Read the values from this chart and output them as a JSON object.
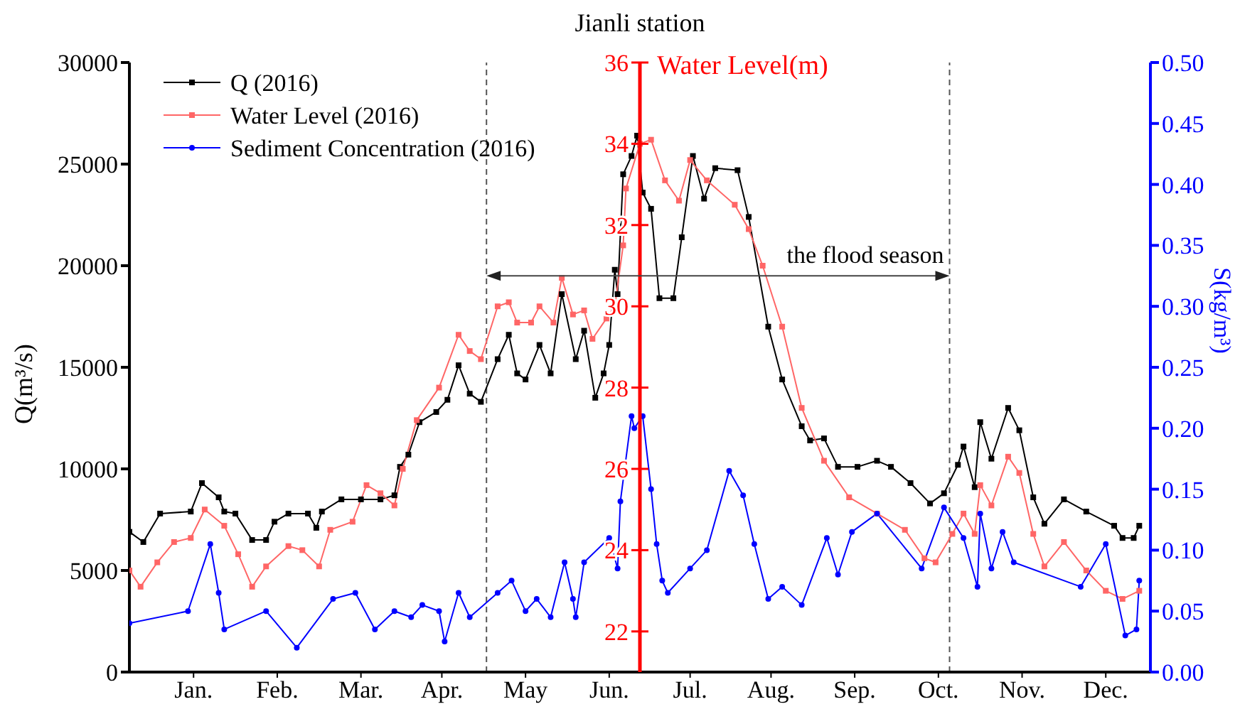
{
  "chart_data": {
    "type": "line",
    "title": "Jianli station",
    "ylabel": "Q(m³/s)",
    "y2label": "Water Level(m)",
    "y3label": "S(kg/m³)",
    "annotations": [
      "the flood season"
    ],
    "xlim": [
      "2016-01-01",
      "2017-01-01"
    ],
    "xticks": [
      {
        "value": "2016-01-24",
        "label": "Jan."
      },
      {
        "value": "2016-02-23",
        "label": "Feb."
      },
      {
        "value": "2016-03-24",
        "label": "Mar."
      },
      {
        "value": "2016-04-22",
        "label": "Apr."
      },
      {
        "value": "2016-05-22",
        "label": "May"
      },
      {
        "value": "2016-06-21",
        "label": "Jun."
      },
      {
        "value": "2016-07-20",
        "label": "Jul."
      },
      {
        "value": "2016-08-18",
        "label": "Aug."
      },
      {
        "value": "2016-09-17",
        "label": "Sep."
      },
      {
        "value": "2016-10-17",
        "label": "Oct."
      },
      {
        "value": "2016-11-16",
        "label": "Nov."
      },
      {
        "value": "2016-12-16",
        "label": "Dec."
      }
    ],
    "ylim": [
      0,
      30000
    ],
    "yticks": [
      0,
      5000,
      10000,
      15000,
      20000,
      25000,
      30000
    ],
    "y2lim": [
      21,
      36
    ],
    "y2ticks": [
      22,
      24,
      26,
      28,
      30,
      32,
      34,
      36
    ],
    "y3lim": [
      0,
      0.5
    ],
    "y3ticks": [
      {
        "value": 0,
        "label": "0.00"
      },
      {
        "value": 0.05,
        "label": "0.05"
      },
      {
        "value": 0.1,
        "label": "0.10"
      },
      {
        "value": 0.15,
        "label": "0.15"
      },
      {
        "value": 0.2,
        "label": "0.20"
      },
      {
        "value": 0.25,
        "label": "0.25"
      },
      {
        "value": 0.3,
        "label": "0.30"
      },
      {
        "value": 0.35,
        "label": "0.35"
      },
      {
        "value": 0.4,
        "label": "0.40"
      },
      {
        "value": 0.45,
        "label": "0.45"
      },
      {
        "value": 0.5,
        "label": "0.50"
      }
    ],
    "legend": "top left",
    "ref_lines": [
      {
        "axis": "x",
        "value": "2016-05-08",
        "color": "#555555",
        "line_style": "dashed"
      },
      {
        "axis": "x",
        "value": "2016-10-21",
        "color": "#555555",
        "line_style": "dashed"
      }
    ],
    "series": [
      {
        "name": "Q (2016)",
        "color": "#000000",
        "marker": "square",
        "x": [
          "2016-01-01",
          "2016-01-06",
          "2016-01-12",
          "2016-01-23",
          "2016-01-27",
          "2016-02-02",
          "2016-02-04",
          "2016-02-08",
          "2016-02-14",
          "2016-02-19",
          "2016-02-22",
          "2016-02-27",
          "2016-03-05",
          "2016-03-08",
          "2016-03-10",
          "2016-03-17",
          "2016-03-24",
          "2016-03-31",
          "2016-04-05",
          "2016-04-07",
          "2016-04-10",
          "2016-04-14",
          "2016-04-20",
          "2016-04-24",
          "2016-04-28",
          "2016-05-02",
          "2016-05-06",
          "2016-05-12",
          "2016-05-16",
          "2016-05-19",
          "2016-05-22",
          "2016-05-27",
          "2016-05-31",
          "2016-06-04",
          "2016-06-09",
          "2016-06-12",
          "2016-06-16",
          "2016-06-19",
          "2016-06-21",
          "2016-06-23",
          "2016-06-24",
          "2016-06-26",
          "2016-06-29",
          "2016-07-01",
          "2016-07-03",
          "2016-07-06",
          "2016-07-09",
          "2016-07-14",
          "2016-07-17",
          "2016-07-21",
          "2016-07-25",
          "2016-07-29",
          "2016-08-06",
          "2016-08-10",
          "2016-08-17",
          "2016-08-22",
          "2016-08-29",
          "2016-09-01",
          "2016-09-06",
          "2016-09-11",
          "2016-09-18",
          "2016-09-25",
          "2016-09-30",
          "2016-10-07",
          "2016-10-14",
          "2016-10-19",
          "2016-10-24",
          "2016-10-26",
          "2016-10-30",
          "2016-11-01",
          "2016-11-05",
          "2016-11-11",
          "2016-11-15",
          "2016-11-20",
          "2016-11-24",
          "2016-12-01",
          "2016-12-09",
          "2016-12-19",
          "2016-12-22",
          "2016-12-26",
          "2016-12-28"
        ],
        "values": [
          6900,
          6400,
          7800,
          7900,
          9300,
          8600,
          7900,
          7800,
          6500,
          6500,
          7400,
          7800,
          7800,
          7100,
          7900,
          8500,
          8500,
          8500,
          8700,
          10100,
          10700,
          12300,
          12800,
          13400,
          15100,
          13700,
          13300,
          15400,
          16600,
          14700,
          14400,
          16100,
          14700,
          18600,
          15400,
          16800,
          13500,
          14700,
          16100,
          19800,
          18600,
          24500,
          25400,
          26400,
          23600,
          22800,
          18400,
          18400,
          21400,
          25400,
          23300,
          24800,
          24700,
          22400,
          17000,
          14400,
          12100,
          11400,
          11500,
          10100,
          10100,
          10400,
          10100,
          9300,
          8300,
          8800,
          10200,
          11100,
          9100,
          12300,
          10500,
          13000,
          11900,
          8600,
          7300,
          8500,
          7900,
          7200,
          6600,
          6600,
          7200
        ]
      },
      {
        "name": "Water Level (2016)",
        "color": "#ff6666",
        "marker": "square",
        "axis": "y2",
        "x": [
          "2016-01-01",
          "2016-01-05",
          "2016-01-11",
          "2016-01-17",
          "2016-01-23",
          "2016-01-28",
          "2016-02-04",
          "2016-02-09",
          "2016-02-14",
          "2016-02-19",
          "2016-02-27",
          "2016-03-03",
          "2016-03-09",
          "2016-03-13",
          "2016-03-21",
          "2016-03-26",
          "2016-03-31",
          "2016-04-05",
          "2016-04-08",
          "2016-04-13",
          "2016-04-21",
          "2016-04-28",
          "2016-05-02",
          "2016-05-06",
          "2016-05-12",
          "2016-05-16",
          "2016-05-19",
          "2016-05-24",
          "2016-05-27",
          "2016-06-01",
          "2016-06-04",
          "2016-06-08",
          "2016-06-12",
          "2016-06-15",
          "2016-06-20",
          "2016-06-23",
          "2016-06-26",
          "2016-06-27",
          "2016-07-02",
          "2016-07-06",
          "2016-07-11",
          "2016-07-16",
          "2016-07-20",
          "2016-07-26",
          "2016-08-05",
          "2016-08-10",
          "2016-08-15",
          "2016-08-22",
          "2016-08-29",
          "2016-09-06",
          "2016-09-15",
          "2016-09-25",
          "2016-10-05",
          "2016-10-12",
          "2016-10-16",
          "2016-10-22",
          "2016-10-26",
          "2016-10-30",
          "2016-11-01",
          "2016-11-05",
          "2016-11-11",
          "2016-11-15",
          "2016-11-20",
          "2016-11-24",
          "2016-12-01",
          "2016-12-09",
          "2016-12-16",
          "2016-12-22",
          "2016-12-28"
        ],
        "values": [
          23.5,
          23.1,
          23.7,
          24.2,
          24.3,
          25.0,
          24.6,
          23.9,
          23.1,
          23.6,
          24.1,
          24.0,
          23.6,
          24.5,
          24.7,
          25.6,
          25.4,
          25.1,
          26.0,
          27.2,
          28.0,
          29.3,
          28.9,
          28.7,
          30.0,
          30.1,
          29.6,
          29.6,
          30.0,
          29.6,
          30.7,
          29.8,
          29.9,
          29.2,
          29.7,
          30.0,
          31.5,
          32.9,
          34.0,
          34.1,
          33.1,
          32.6,
          33.6,
          33.1,
          32.5,
          31.9,
          31.0,
          29.5,
          27.5,
          26.2,
          25.3,
          24.9,
          24.5,
          23.8,
          23.7,
          24.4,
          24.9,
          24.4,
          25.6,
          25.1,
          26.3,
          25.9,
          24.4,
          23.6,
          24.2,
          23.5,
          23.0,
          22.8,
          23.0
        ]
      },
      {
        "name": "Sediment Concentration (2016)",
        "color": "#0000ff",
        "marker": "circle",
        "axis": "y3",
        "x": [
          "2016-01-01",
          "2016-01-22",
          "2016-01-30",
          "2016-02-02",
          "2016-02-04",
          "2016-02-19",
          "2016-03-01",
          "2016-03-14",
          "2016-03-22",
          "2016-03-29",
          "2016-04-05",
          "2016-04-11",
          "2016-04-15",
          "2016-04-21",
          "2016-04-23",
          "2016-04-28",
          "2016-05-02",
          "2016-05-12",
          "2016-05-17",
          "2016-05-22",
          "2016-05-26",
          "2016-05-31",
          "2016-06-05",
          "2016-06-08",
          "2016-06-09",
          "2016-06-12",
          "2016-06-21",
          "2016-06-24",
          "2016-06-25",
          "2016-06-29",
          "2016-06-30",
          "2016-07-03",
          "2016-07-06",
          "2016-07-08",
          "2016-07-10",
          "2016-07-12",
          "2016-07-20",
          "2016-07-26",
          "2016-08-03",
          "2016-08-08",
          "2016-08-12",
          "2016-08-17",
          "2016-08-22",
          "2016-08-29",
          "2016-09-07",
          "2016-09-11",
          "2016-09-16",
          "2016-09-25",
          "2016-10-11",
          "2016-10-19",
          "2016-10-26",
          "2016-10-31",
          "2016-11-01",
          "2016-11-05",
          "2016-11-09",
          "2016-11-13",
          "2016-12-07",
          "2016-12-16",
          "2016-12-23",
          "2016-12-27",
          "2016-12-28"
        ],
        "values": [
          0.04,
          0.05,
          0.105,
          0.065,
          0.035,
          0.05,
          0.02,
          0.06,
          0.065,
          0.035,
          0.05,
          0.045,
          0.055,
          0.05,
          0.025,
          0.065,
          0.045,
          0.065,
          0.075,
          0.05,
          0.06,
          0.045,
          0.09,
          0.06,
          0.045,
          0.09,
          0.11,
          0.085,
          0.14,
          0.21,
          0.2,
          0.21,
          0.15,
          0.105,
          0.075,
          0.065,
          0.085,
          0.1,
          0.165,
          0.145,
          0.105,
          0.06,
          0.07,
          0.055,
          0.11,
          0.08,
          0.115,
          0.13,
          0.085,
          0.135,
          0.11,
          0.07,
          0.13,
          0.085,
          0.115,
          0.09,
          0.07,
          0.105,
          0.03,
          0.035,
          0.075
        ]
      }
    ]
  }
}
